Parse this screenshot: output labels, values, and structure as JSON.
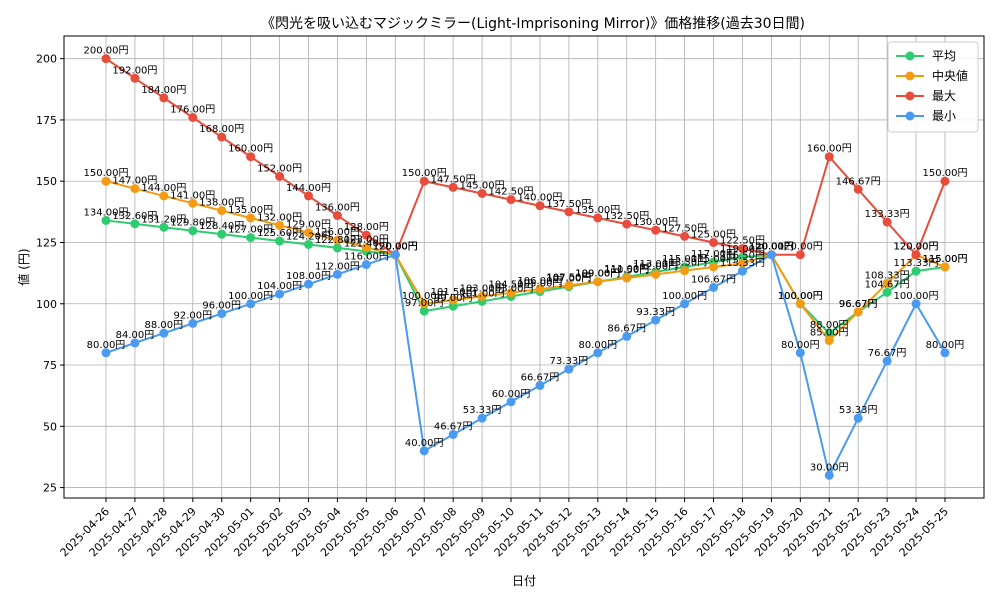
{
  "chart_data": {
    "type": "line",
    "title": "《閃光を吸い込むマジックミラー(Light-Imprisoning Mirror)》価格推移(過去30日間)",
    "xlabel": "日付",
    "ylabel": "値 (円)",
    "ylim": [
      20.75,
      209.25
    ],
    "yticks": [
      25,
      50,
      75,
      100,
      125,
      150,
      175,
      200
    ],
    "grid": true,
    "legend_position": "top-right",
    "value_suffix": "円",
    "categories": [
      "2025-04-26",
      "2025-04-27",
      "2025-04-28",
      "2025-04-29",
      "2025-04-30",
      "2025-05-01",
      "2025-05-02",
      "2025-05-03",
      "2025-05-04",
      "2025-05-05",
      "2025-05-06",
      "2025-05-07",
      "2025-05-08",
      "2025-05-09",
      "2025-05-10",
      "2025-05-11",
      "2025-05-12",
      "2025-05-13",
      "2025-05-14",
      "2025-05-15",
      "2025-05-16",
      "2025-05-17",
      "2025-05-18",
      "2025-05-19",
      "2025-05-20",
      "2025-05-21",
      "2025-05-22",
      "2025-05-23",
      "2025-05-24",
      "2025-05-25"
    ],
    "series": [
      {
        "name": "平均",
        "color": "#2ecc71",
        "values": [
          134.0,
          132.6,
          131.2,
          129.8,
          128.4,
          127.0,
          125.6,
          124.2,
          122.8,
          121.4,
          120.0,
          97.0,
          99.0,
          101.0,
          103.0,
          105.0,
          107.0,
          109.0,
          111.0,
          113.0,
          115.0,
          117.0,
          119.0,
          120.0,
          100.0,
          88.0,
          96.67,
          104.67,
          113.33,
          115.0
        ]
      },
      {
        "name": "中央値",
        "color": "#f39c12",
        "values": [
          150.0,
          147.0,
          144.0,
          141.0,
          138.0,
          135.0,
          132.0,
          129.0,
          126.0,
          123.0,
          120.0,
          100.0,
          101.5,
          103.0,
          104.5,
          106.0,
          107.5,
          109.0,
          110.5,
          112.0,
          113.5,
          115.0,
          116.5,
          120.0,
          100.0,
          85.0,
          96.67,
          108.33,
          120.0,
          115.0
        ]
      },
      {
        "name": "最大",
        "color": "#e74c3c",
        "values": [
          200.0,
          192.0,
          184.0,
          176.0,
          168.0,
          160.0,
          152.0,
          144.0,
          136.0,
          128.0,
          120.0,
          150.0,
          147.5,
          145.0,
          142.5,
          140.0,
          137.5,
          135.0,
          132.5,
          130.0,
          127.5,
          125.0,
          122.5,
          120.0,
          120.0,
          160.0,
          146.67,
          133.33,
          120.0,
          150.0
        ]
      },
      {
        "name": "最小",
        "color": "#4a9af0",
        "values": [
          80.0,
          84.0,
          88.0,
          92.0,
          96.0,
          100.0,
          104.0,
          108.0,
          112.0,
          116.0,
          120.0,
          40.0,
          46.67,
          53.33,
          60.0,
          66.67,
          73.33,
          80.0,
          86.67,
          93.33,
          100.0,
          106.67,
          113.33,
          120.0,
          80.0,
          30.0,
          53.33,
          76.67,
          100.0,
          80.0
        ]
      }
    ]
  }
}
